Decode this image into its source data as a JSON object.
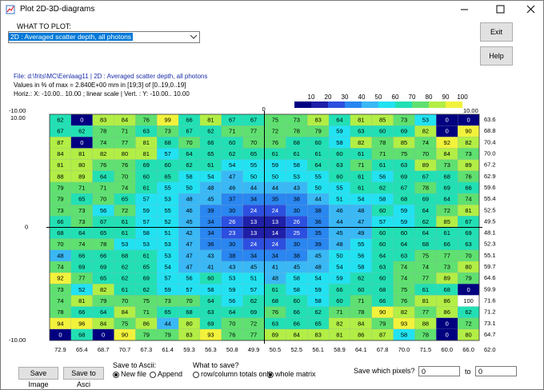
{
  "window": {
    "title": "Plot 2D-3D-diagrams"
  },
  "header": {
    "what_to_plot_label": "WHAT TO PLOT:",
    "selection": "2D : Averaged scatter depth, all photons",
    "exit": "Exit",
    "help": "Help"
  },
  "info": {
    "line1": "File: d:\\frits\\MC\\Eenlaag11    |    2D : Averaged scatter depth, all photons",
    "line2": "Values in % of max = 2.840E+00 mm in [19;3] of [0..19,0..19]",
    "line3": "Horiz.: X: -10.00.. 10.00 ; linear scale  |  Vert. : Y: -10.00.. 10.00"
  },
  "legend": {
    "ticks": [
      10,
      20,
      30,
      40,
      50,
      60,
      70,
      80,
      90,
      100
    ],
    "colors": [
      "#000080",
      "#1f1fa8",
      "#2d4fe0",
      "#2a86f0",
      "#3ab8f5",
      "#22e2f2",
      "#22e0b4",
      "#5fe070",
      "#b2ee45",
      "#f2f23c",
      "#ffffff"
    ]
  },
  "plot": {
    "axis_labels": {
      "top_left": "-10.00",
      "left_top": "10.00",
      "top_center": "0",
      "top_right": "10.00",
      "left_center": "0",
      "bottom_left": "-10.00"
    },
    "rows": [
      [
        62,
        0,
        83,
        84,
        76,
        99,
        66,
        81,
        67,
        67,
        75,
        73,
        83,
        64,
        81,
        85,
        73,
        53,
        0,
        0
      ],
      [
        67,
        62,
        78,
        71,
        63,
        73,
        67,
        62,
        71,
        77,
        72,
        78,
        79,
        59,
        63,
        60,
        69,
        82,
        0,
        90
      ],
      [
        87,
        0,
        74,
        77,
        81,
        68,
        70,
        66,
        60,
        70,
        76,
        68,
        60,
        58,
        82,
        78,
        85,
        74,
        92,
        82
      ],
      [
        84,
        81,
        82,
        80,
        81,
        57,
        64,
        65,
        62,
        65,
        61,
        61,
        61,
        60,
        61,
        71,
        75,
        70,
        84,
        73
      ],
      [
        81,
        80,
        76,
        76,
        69,
        60,
        62,
        61,
        54,
        55,
        59,
        58,
        64,
        63,
        71,
        61,
        63,
        89,
        73,
        89
      ],
      [
        88,
        89,
        64,
        70,
        60,
        65,
        58,
        54,
        47,
        50,
        50,
        53,
        55,
        60,
        61,
        56,
        69,
        67,
        68,
        76
      ],
      [
        79,
        71,
        71,
        74,
        61,
        55,
        50,
        48,
        46,
        44,
        44,
        43,
        50,
        55,
        61,
        62,
        67,
        78,
        69,
        66
      ],
      [
        79,
        65,
        70,
        65,
        57,
        53,
        48,
        45,
        37,
        34,
        35,
        38,
        44,
        51,
        54,
        58,
        68,
        69,
        64,
        74
      ],
      [
        73,
        73,
        56,
        72,
        59,
        55,
        46,
        39,
        30,
        24,
        24,
        30,
        38,
        46,
        48,
        60,
        59,
        64,
        72,
        81
      ],
      [
        66,
        73,
        67,
        61,
        57,
        52,
        45,
        34,
        26,
        13,
        13,
        26,
        36,
        44,
        47,
        57,
        59,
        62,
        85,
        67
      ],
      [
        68,
        64,
        65,
        61,
        58,
        51,
        42,
        34,
        23,
        13,
        14,
        25,
        35,
        45,
        49,
        60,
        60,
        64,
        61,
        69
      ],
      [
        70,
        74,
        78,
        53,
        53,
        53,
        47,
        36,
        30,
        24,
        24,
        30,
        39,
        48,
        55,
        60,
        64,
        68,
        66,
        63
      ],
      [
        48,
        66,
        66,
        68,
        61,
        53,
        47,
        43,
        38,
        34,
        34,
        38,
        45,
        50,
        56,
        64,
        63,
        75,
        77,
        70
      ],
      [
        74,
        69,
        69,
        62,
        65,
        54,
        47,
        41,
        43,
        45,
        41,
        45,
        48,
        54,
        58,
        63,
        74,
        74,
        73,
        80
      ],
      [
        92,
        77,
        65,
        62,
        69,
        57,
        56,
        60,
        53,
        51,
        48,
        58,
        54,
        59,
        62,
        60,
        74,
        77,
        89,
        79
      ],
      [
        73,
        52,
        82,
        61,
        62,
        59,
        57,
        58,
        59,
        57,
        61,
        58,
        59,
        66,
        60,
        68,
        75,
        61,
        68,
        0
      ],
      [
        74,
        81,
        79,
        70,
        75,
        73,
        70,
        64,
        56,
        62,
        68,
        60,
        58,
        60,
        71,
        66,
        76,
        81,
        86,
        100
      ],
      [
        78,
        66,
        64,
        84,
        71,
        65,
        68,
        63,
        64,
        69,
        76,
        66,
        62,
        71,
        78,
        90,
        82,
        77,
        86,
        62
      ],
      [
        94,
        96,
        84,
        75,
        86,
        44,
        80,
        69,
        70,
        72,
        63,
        66,
        65,
        82,
        84,
        79,
        93,
        88,
        0,
        72
      ],
      [
        0,
        68,
        0,
        90,
        79,
        79,
        83,
        93,
        76,
        77,
        89,
        84,
        83,
        81,
        86,
        87,
        58,
        78,
        0,
        80
      ]
    ],
    "row_totals": [
      "63.6",
      "68.8",
      "70.4",
      "70.0",
      "67.2",
      "62.9",
      "59.6",
      "55.4",
      "52.5",
      "49.5",
      "48.1",
      "52.3",
      "55.1",
      "59.7",
      "64.6",
      "59.9",
      "71.6",
      "71.2",
      "73.1",
      "64.7"
    ],
    "column_totals": [
      "72.9",
      "65.4",
      "68.7",
      "70.7",
      "67.3",
      "61.4",
      "59.3",
      "56.3",
      "50.8",
      "49.9",
      "50.5",
      "52.5",
      "56.1",
      "58.9",
      "64.1",
      "67.8",
      "70.0",
      "71.5",
      "60.0",
      "66.0"
    ],
    "grand_total": "62.0"
  },
  "controls": {
    "save_image": "Save Image",
    "save_to_asci": "Save to Asci",
    "save_to_ascii_label": "Save to Ascii:",
    "new_file": "New file",
    "append": "Append",
    "what_to_save_label": "What to save?",
    "totals_only": "row/column totals only",
    "whole_matrix": "whole matrix",
    "save_which_pixels": "Save which pixels?",
    "from_value": "0",
    "to": "to",
    "to_value": "0"
  }
}
